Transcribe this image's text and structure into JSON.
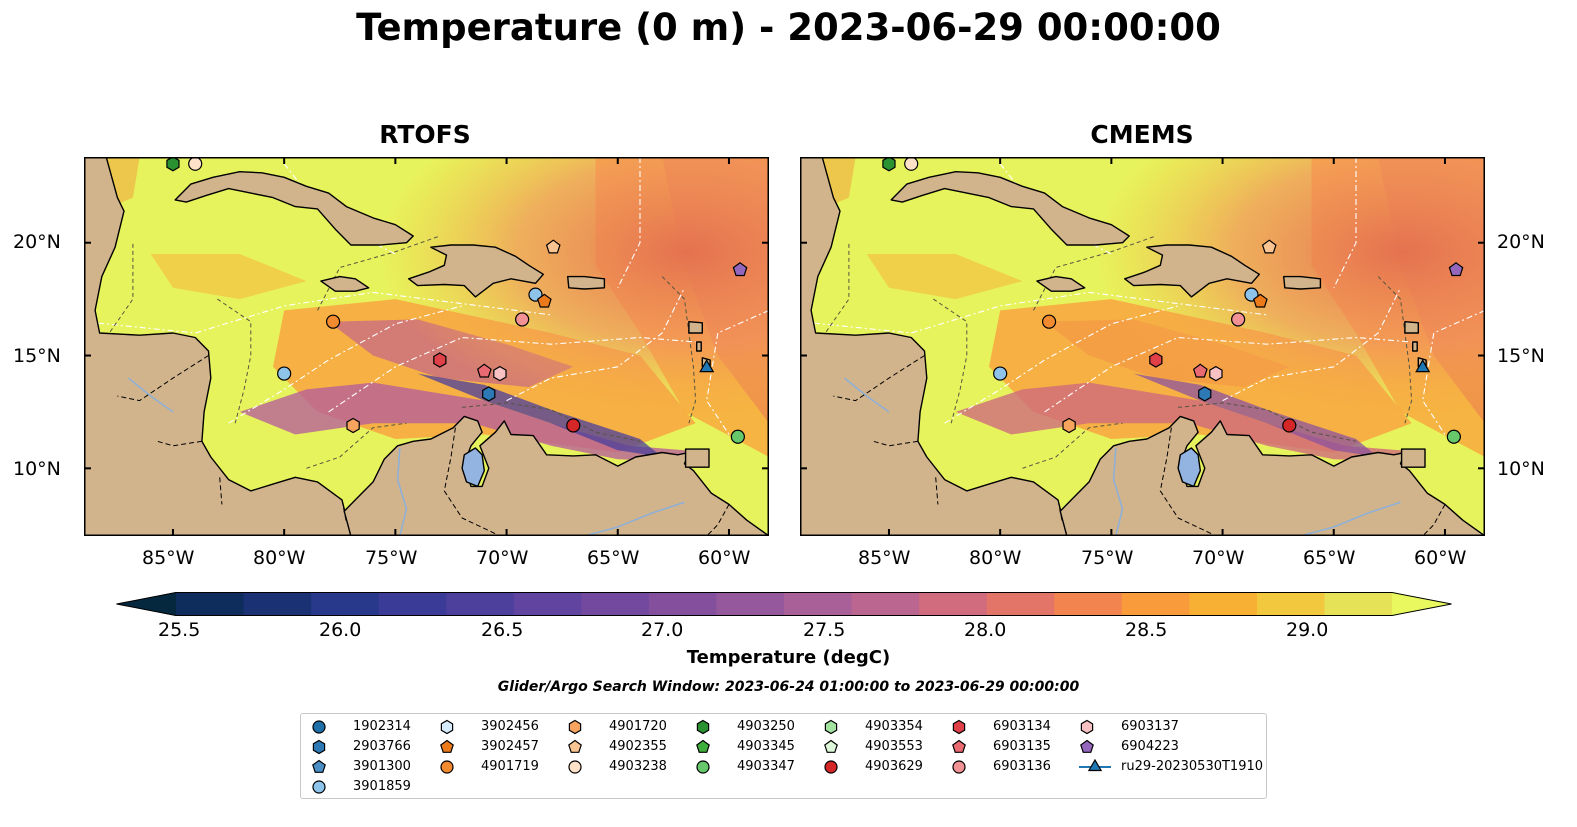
{
  "title": "Temperature (0 m) - 2023-06-29 00:00:00",
  "panels": [
    {
      "title": "RTOFS"
    },
    {
      "title": "CMEMS"
    }
  ],
  "axes": {
    "lon_labels": [
      "85°W",
      "80°W",
      "75°W",
      "70°W",
      "65°W",
      "60°W"
    ],
    "lat_labels": [
      "20°N",
      "15°N",
      "10°N"
    ],
    "lon_range": [
      -89,
      -58.2
    ],
    "lat_range": [
      7,
      23.8
    ]
  },
  "colorbar": {
    "label": "Temperature (degC)",
    "ticks": [
      "25.5",
      "26.0",
      "26.5",
      "27.0",
      "27.5",
      "28.0",
      "28.5",
      "29.0"
    ],
    "levels": [
      25.25,
      25.5,
      25.75,
      26.0,
      26.25,
      26.5,
      26.75,
      27.0,
      27.25,
      27.5,
      27.75,
      28.0,
      28.25,
      28.5,
      28.75,
      29.0,
      29.25
    ],
    "colors": [
      "#05283f",
      "#0e2c5c",
      "#1a3274",
      "#28388a",
      "#3a3b96",
      "#4d3f9c",
      "#60449f",
      "#72499f",
      "#84509e",
      "#96589c",
      "#a95f98",
      "#bb6690",
      "#d06c7d",
      "#e37568",
      "#f28450",
      "#f99a3b",
      "#f8b034",
      "#f1c83e",
      "#e6e257",
      "#e8f85e"
    ],
    "extend": "both"
  },
  "search_window": "Glider/Argo Search Window: 2023-06-24 01:00:00 to 2023-06-29 00:00:00",
  "legend": [
    {
      "label": "1902314",
      "marker": "circle",
      "color": "#1f6fa8"
    },
    {
      "label": "2903766",
      "marker": "hexagon",
      "color": "#2d79b5"
    },
    {
      "label": "3901300",
      "marker": "pentagon",
      "color": "#4a90c6"
    },
    {
      "label": "3901859",
      "marker": "circle",
      "color": "#8fc4ea"
    },
    {
      "label": "3902456",
      "marker": "hexagon",
      "color": "#d6ebfb"
    },
    {
      "label": "3902457",
      "marker": "pentagon",
      "color": "#ec7a1a"
    },
    {
      "label": "4901719",
      "marker": "circle",
      "color": "#f28a2f"
    },
    {
      "label": "4901720",
      "marker": "hexagon",
      "color": "#f6a45e"
    },
    {
      "label": "4902355",
      "marker": "pentagon",
      "color": "#fbc593"
    },
    {
      "label": "4903238",
      "marker": "circle",
      "color": "#fde2c8"
    },
    {
      "label": "4903250",
      "marker": "hexagon",
      "color": "#2a9230"
    },
    {
      "label": "4903345",
      "marker": "pentagon",
      "color": "#3fae3c"
    },
    {
      "label": "4903347",
      "marker": "circle",
      "color": "#66c86a"
    },
    {
      "label": "4903354",
      "marker": "hexagon",
      "color": "#a3e3a0"
    },
    {
      "label": "4903553",
      "marker": "pentagon",
      "color": "#dcf6d7"
    },
    {
      "label": "4903629",
      "marker": "circle",
      "color": "#d62728"
    },
    {
      "label": "6903134",
      "marker": "hexagon",
      "color": "#e04048"
    },
    {
      "label": "6903135",
      "marker": "pentagon",
      "color": "#ea6a72"
    },
    {
      "label": "6903136",
      "marker": "circle",
      "color": "#f29294"
    },
    {
      "label": "6903137",
      "marker": "hexagon",
      "color": "#f8c1c4"
    },
    {
      "label": "6904223",
      "marker": "pentagon",
      "color": "#9467bd"
    },
    {
      "label": "ru29-20230530T1910",
      "marker": "triangle-line",
      "color": "#1f77b4"
    }
  ],
  "floats": [
    {
      "id": "4903250",
      "lon": -85.0,
      "lat": 23.5
    },
    {
      "id": "4903238",
      "lon": -84.0,
      "lat": 23.5
    },
    {
      "id": "3901859",
      "lon": -80.0,
      "lat": 14.2
    },
    {
      "id": "4901719",
      "lon": -77.8,
      "lat": 16.5
    },
    {
      "id": "4901720",
      "lon": -76.9,
      "lat": 11.9
    },
    {
      "id": "6903134",
      "lon": -73.0,
      "lat": 14.8
    },
    {
      "id": "6903135",
      "lon": -71.0,
      "lat": 14.3
    },
    {
      "id": "6903137",
      "lon": -70.3,
      "lat": 14.2
    },
    {
      "id": "2903766",
      "lon": -70.8,
      "lat": 13.3
    },
    {
      "id": "6903136",
      "lon": -69.3,
      "lat": 16.6
    },
    {
      "id": "3901859",
      "lon": -68.7,
      "lat": 17.7
    },
    {
      "id": "3902457",
      "lon": -68.3,
      "lat": 17.4
    },
    {
      "id": "4902355",
      "lon": -67.9,
      "lat": 19.8
    },
    {
      "id": "4903629",
      "lon": -67.0,
      "lat": 11.9
    },
    {
      "id": "6904223",
      "lon": -59.5,
      "lat": 18.8
    },
    {
      "id": "4903347",
      "lon": -59.6,
      "lat": 11.4
    },
    {
      "id": "ru29-20230530T1910",
      "lon": -61.0,
      "lat": 14.5
    }
  ]
}
